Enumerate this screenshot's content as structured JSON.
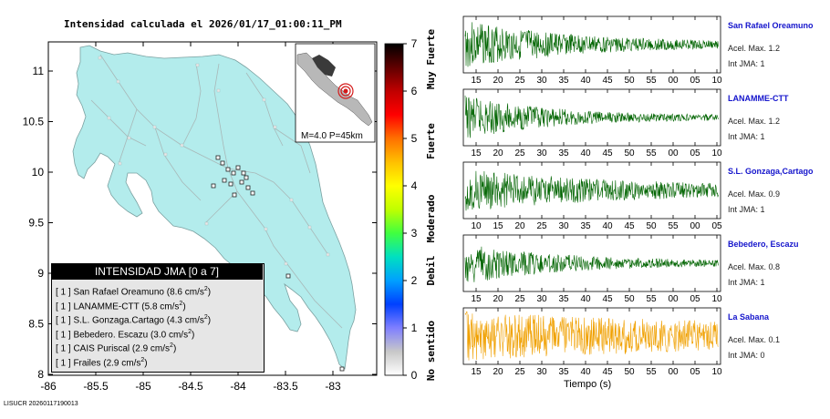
{
  "title": "Intensidad calculada el 2026/01/17_01:00:11_PM",
  "footer_id": "LISUCR 20260117190013",
  "map": {
    "y_ticks": [
      "11",
      "10.5",
      "10",
      "9.5",
      "9",
      "8.5",
      "8"
    ],
    "x_ticks": [
      "-86",
      "-85.5",
      "-85",
      "-84.5",
      "-84",
      "-83.5",
      "-83"
    ],
    "land_color": "#b3ecec",
    "inset_label": "M=4.0 P=45km",
    "epicenter_color": "#d41a1a",
    "station_marker_color": "#ffffff"
  },
  "legend": {
    "title": "INTENSIDAD JMA [0 a 7]",
    "rows": [
      {
        "jma": "[ 1 ]",
        "name": "San Rafael Oreamuno",
        "pga": "(8.6 cm/s",
        "sup": "2",
        "close": ")"
      },
      {
        "jma": "[ 1 ]",
        "name": "LANAMME-CTT",
        "pga": "(5.8 cm/s",
        "sup": "2",
        "close": ")"
      },
      {
        "jma": "[ 1 ]",
        "name": "S.L. Gonzaga.Cartago",
        "pga": "(4.3 cm/s",
        "sup": "2",
        "close": ")"
      },
      {
        "jma": "[ 1 ]",
        "name": "Bebedero. Escazu",
        "pga": "(3.0 cm/s",
        "sup": "2",
        "close": ")"
      },
      {
        "jma": "[ 1 ]",
        "name": "CAIS Puriscal",
        "pga": "(2.9 cm/s",
        "sup": "2",
        "close": ")"
      },
      {
        "jma": "[ 1 ]",
        "name": "Frailes",
        "pga": "(2.9 cm/s",
        "sup": "2",
        "close": ")"
      }
    ]
  },
  "intensity_scale": {
    "ticks": [
      "0",
      "1",
      "2",
      "3",
      "4",
      "5",
      "6",
      "7"
    ],
    "labels": [
      "No sentido",
      "Debil",
      "Moderado",
      "Fuerte",
      "Muy Fuerte"
    ],
    "colors": [
      "#ffffff",
      "#c8c8c8",
      "#7f7fff",
      "#0040ff",
      "#00a0ff",
      "#00e0c0",
      "#40ff40",
      "#c0ff00",
      "#ffff00",
      "#ffc000",
      "#ff7000",
      "#ff0000",
      "#c00000",
      "#600000",
      "#000000"
    ]
  },
  "chart_data": {
    "type": "line",
    "xlabel": "Tiempo (s)",
    "series": [
      {
        "name": "San Rafael Oreamuno",
        "acel": "Acel. Max. 1.2",
        "int": "Int JMA: 1",
        "color": "#006400",
        "x_ticks": [
          "15",
          "20",
          "25",
          "30",
          "35",
          "40",
          "45",
          "50",
          "55",
          "00",
          "05",
          "10"
        ],
        "amplitude": 1.0,
        "decay": 0.035
      },
      {
        "name": "LANAMME-CTT",
        "acel": "Acel. Max. 1.2",
        "int": "Int JMA: 1",
        "color": "#006400",
        "x_ticks": [
          "15",
          "20",
          "25",
          "30",
          "35",
          "40",
          "45",
          "50",
          "55",
          "00",
          "05",
          "10"
        ],
        "amplitude": 0.9,
        "decay": 0.045
      },
      {
        "name": "S.L. Gonzaga,Cartago",
        "acel": "Acel. Max. 0.9",
        "int": "Int JMA: 1",
        "color": "#006400",
        "x_ticks": [
          "10",
          "15",
          "20",
          "25",
          "30",
          "35",
          "40",
          "45",
          "50",
          "55",
          "00",
          "05"
        ],
        "amplitude": 0.85,
        "decay": 0.02
      },
      {
        "name": "Bebedero, Escazu",
        "acel": "Acel. Max. 0.8",
        "int": "Int JMA: 1",
        "color": "#006400",
        "x_ticks": [
          "15",
          "20",
          "25",
          "30",
          "35",
          "40",
          "45",
          "50",
          "55",
          "00",
          "05",
          "10"
        ],
        "amplitude": 0.85,
        "decay": 0.04
      },
      {
        "name": "La Sabana",
        "acel": "Acel. Max. 0.1",
        "int": "Int JMA: 0",
        "color": "#f0a000",
        "x_ticks": [
          "15",
          "20",
          "25",
          "30",
          "35",
          "40",
          "45",
          "50",
          "55",
          "00",
          "05",
          "10"
        ],
        "amplitude": 1.0,
        "decay": 0.008
      }
    ]
  }
}
